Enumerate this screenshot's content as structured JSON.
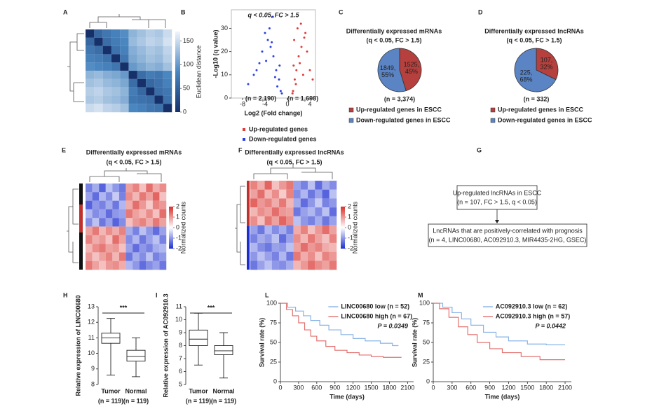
{
  "chart_data": [
    {
      "type": "heatmap",
      "panel": "A",
      "colorbar_label": "Euclidean distance",
      "zlim": [
        0,
        170
      ],
      "zticks": [
        0,
        50,
        100,
        150
      ],
      "colors": [
        "#16306a",
        "#4a86c0",
        "#f0f5fb"
      ],
      "values": [
        [
          0,
          55,
          70,
          80,
          90,
          120,
          130,
          140,
          135,
          150
        ],
        [
          55,
          0,
          60,
          75,
          85,
          125,
          135,
          145,
          140,
          155
        ],
        [
          70,
          60,
          0,
          65,
          80,
          115,
          125,
          135,
          130,
          145
        ],
        [
          80,
          75,
          65,
          0,
          70,
          110,
          120,
          130,
          125,
          140
        ],
        [
          90,
          85,
          80,
          70,
          0,
          100,
          110,
          120,
          115,
          130
        ],
        [
          120,
          125,
          115,
          110,
          100,
          0,
          60,
          75,
          70,
          85
        ],
        [
          130,
          135,
          125,
          120,
          110,
          60,
          0,
          55,
          65,
          80
        ],
        [
          140,
          145,
          135,
          130,
          120,
          75,
          55,
          0,
          60,
          70
        ],
        [
          135,
          140,
          130,
          125,
          115,
          70,
          65,
          60,
          0,
          65
        ],
        [
          150,
          155,
          145,
          140,
          130,
          85,
          80,
          70,
          65,
          0
        ]
      ]
    },
    {
      "type": "scatter",
      "panel": "B",
      "annotation": "q < 0.05, FC > 1.5",
      "xlabel": "Log2 (Fold change)",
      "ylabel": "-Log10 (q value)",
      "xlim": [
        -10,
        5
      ],
      "ylim": [
        0,
        38
      ],
      "xticks": [
        -8,
        -4,
        0,
        4
      ],
      "yticks": [
        0,
        10,
        20,
        30
      ],
      "count_labels": [
        "(n = 2,190)",
        "(n = 1,698)"
      ],
      "series": [
        {
          "name": "Up-regulated genes",
          "color": "#e03a3a",
          "x": [
            1.0,
            1.3,
            1.6,
            2.0,
            2.5,
            3.0,
            3.5,
            4.0,
            1.2,
            1.8,
            2.2,
            2.8,
            0.9,
            1.5,
            3.2,
            2.4,
            1.1,
            4.5
          ],
          "values": [
            3,
            8,
            12,
            18,
            22,
            26,
            20,
            12,
            25,
            30,
            15,
            10,
            2,
            6,
            28,
            32,
            14,
            8
          ]
        },
        {
          "name": "Down-regulated genes",
          "color": "#2a3fe0",
          "x": [
            -1.2,
            -1.5,
            -2,
            -2.5,
            -3,
            -3.5,
            -4,
            -4.5,
            -5,
            -6,
            -7,
            -1.8,
            -2.2,
            -2.8,
            -3.2,
            -3.8,
            -1.0,
            -1.4,
            -2.6,
            -5.5
          ],
          "values": [
            3,
            8,
            12,
            18,
            22,
            25,
            28,
            20,
            15,
            10,
            6,
            5,
            9,
            24,
            30,
            16,
            2,
            14,
            35,
            12
          ]
        }
      ]
    },
    {
      "type": "pie",
      "panel": "C",
      "title": "Differentially expressed mRNAs",
      "subtitle": "(q < 0.05, FC > 1.5)",
      "categories": [
        "Up-regulated genes in ESCC",
        "Down-regulated genes in ESCC"
      ],
      "values": [
        1525,
        1849
      ],
      "value_labels": [
        [
          "1525,",
          "45%"
        ],
        [
          "1849,",
          "55%"
        ]
      ],
      "colors": [
        "#b5403d",
        "#5b84c4"
      ],
      "total_label": "(n = 3,374)"
    },
    {
      "type": "pie",
      "panel": "D",
      "title": "Differentially expressed lncRNAs",
      "subtitle": "(q < 0.05, FC > 1.5)",
      "categories": [
        "Up-regulated genes in ESCC",
        "Down-regulated genes in ESCC"
      ],
      "values": [
        107,
        225
      ],
      "value_labels": [
        [
          "107,",
          "32%"
        ],
        [
          "225,",
          "68%"
        ]
      ],
      "colors": [
        "#b5403d",
        "#5b84c4"
      ],
      "total_label": "(n = 332)"
    },
    {
      "type": "heatmap",
      "panel": "E",
      "title": "Differentially expressed mRNAs",
      "subtitle": "(q < 0.05, FC > 1.5)",
      "colorbar_label": "Normalized counts",
      "zlim": [
        -2,
        2
      ],
      "zticks": [
        -2,
        -1,
        0,
        1,
        2
      ],
      "colors": [
        "#1d2fd0",
        "#ffffff",
        "#d9302c"
      ],
      "values": [
        [
          -1.2,
          -0.8,
          -1.5,
          -0.6,
          -1.0,
          -1.3,
          0.9,
          1.2,
          0.6,
          1.4,
          0.8,
          1.1
        ],
        [
          -0.9,
          -1.4,
          -0.7,
          -1.1,
          -0.5,
          -1.2,
          1.1,
          0.7,
          1.3,
          0.9,
          1.5,
          0.6
        ],
        [
          -1.5,
          -1.0,
          -1.2,
          -0.8,
          -1.3,
          -0.7,
          0.8,
          1.4,
          1.0,
          0.5,
          1.2,
          1.0
        ],
        [
          -0.7,
          -1.1,
          -0.9,
          -1.4,
          -1.0,
          -0.9,
          1.3,
          0.9,
          0.7,
          1.1,
          0.6,
          1.4
        ],
        [
          -1.1,
          -0.6,
          -1.3,
          -0.9,
          -1.5,
          -1.1,
          0.6,
          1.0,
          1.2,
          0.8,
          1.3,
          0.9
        ],
        [
          0.9,
          1.3,
          0.7,
          1.1,
          0.8,
          1.2,
          -0.8,
          -1.2,
          -0.6,
          -1.0,
          -1.4,
          -0.9
        ],
        [
          1.2,
          0.8,
          1.0,
          0.6,
          1.4,
          0.9,
          -1.1,
          -0.7,
          -1.3,
          -0.9,
          -0.6,
          -1.2
        ],
        [
          0.7,
          1.1,
          1.3,
          0.9,
          1.0,
          0.6,
          -0.9,
          -1.4,
          -1.0,
          -1.2,
          -0.8,
          -0.7
        ],
        [
          1.0,
          0.6,
          0.9,
          1.2,
          0.7,
          1.3,
          -1.3,
          -0.8,
          -1.1,
          -0.6,
          -1.2,
          -1.0
        ],
        [
          1.3,
          0.9,
          0.6,
          1.0,
          1.1,
          0.8,
          -0.7,
          -1.0,
          -1.4,
          -1.1,
          -0.9,
          -1.3
        ]
      ]
    },
    {
      "type": "heatmap",
      "panel": "F",
      "title": "Differentially expressed lncRNAs",
      "subtitle": "(q < 0.05, FC > 1.5)",
      "colorbar_label": "Normalized counts",
      "zlim": [
        -2,
        2
      ],
      "zticks": [
        -2,
        -1,
        0,
        1,
        2
      ],
      "colors": [
        "#1d2fd0",
        "#ffffff",
        "#d9302c"
      ],
      "values": [
        [
          1.2,
          0.8,
          1.5,
          0.6,
          1.0,
          1.3,
          -0.9,
          -1.2,
          -0.6,
          -1.4,
          -0.8,
          -1.1
        ],
        [
          0.9,
          1.4,
          0.7,
          1.1,
          0.5,
          1.2,
          -1.1,
          -0.7,
          -1.3,
          -0.9,
          -1.5,
          -0.6
        ],
        [
          1.5,
          1.0,
          1.2,
          0.8,
          1.3,
          0.7,
          -0.8,
          -1.4,
          -1.0,
          -0.5,
          -1.2,
          -1.0
        ],
        [
          0.7,
          1.1,
          0.9,
          1.4,
          1.0,
          0.9,
          -1.3,
          -0.9,
          -0.7,
          -1.1,
          -0.6,
          -1.4
        ],
        [
          1.1,
          0.6,
          1.3,
          0.9,
          1.5,
          1.1,
          -0.6,
          -1.0,
          -1.2,
          -0.8,
          -1.3,
          -0.9
        ],
        [
          -0.9,
          -1.3,
          -0.7,
          -1.1,
          -0.8,
          -1.2,
          0.8,
          1.2,
          0.6,
          1.0,
          1.4,
          0.9
        ],
        [
          -1.2,
          -0.8,
          -1.0,
          -0.6,
          -1.4,
          -0.9,
          1.1,
          0.7,
          1.3,
          0.9,
          0.6,
          1.2
        ],
        [
          -0.7,
          -1.1,
          -1.3,
          -0.9,
          -1.0,
          -0.6,
          0.9,
          1.4,
          1.0,
          1.2,
          0.8,
          0.7
        ],
        [
          -1.0,
          -0.6,
          -0.9,
          -1.2,
          -0.7,
          -1.3,
          1.3,
          0.8,
          1.1,
          0.6,
          1.2,
          1.0
        ],
        [
          -1.3,
          -0.9,
          -0.6,
          -1.0,
          -1.1,
          -0.8,
          0.7,
          1.0,
          1.4,
          1.1,
          0.9,
          1.3
        ]
      ]
    },
    {
      "type": "box",
      "panel": "H",
      "ylabel": "Relative expression of LINC00680",
      "ylim": [
        8,
        13
      ],
      "yticks": [
        8,
        9,
        10,
        11,
        12,
        13
      ],
      "categories": [
        "Tumor",
        "Normal"
      ],
      "n_labels": [
        "(n = 119)",
        "(n = 119)"
      ],
      "annotation": "***",
      "boxes": [
        {
          "min": 8.6,
          "q1": 10.65,
          "median": 11.0,
          "q3": 11.3,
          "max": 12.25
        },
        {
          "min": 8.5,
          "q1": 9.5,
          "median": 9.8,
          "q3": 10.2,
          "max": 11.0
        }
      ]
    },
    {
      "type": "box",
      "panel": "I",
      "ylabel": "Relative expression of AC092910.3",
      "ylim": [
        5,
        11
      ],
      "yticks": [
        5,
        6,
        7,
        8,
        9,
        10,
        11
      ],
      "categories": [
        "Tumor",
        "Normal"
      ],
      "n_labels": [
        "(n = 119)",
        "(n = 119)"
      ],
      "annotation": "***",
      "boxes": [
        {
          "min": 6.5,
          "q1": 8.0,
          "median": 8.5,
          "q3": 9.2,
          "max": 10.5
        },
        {
          "min": 5.5,
          "q1": 7.3,
          "median": 7.6,
          "q3": 8.0,
          "max": 9.0
        }
      ]
    },
    {
      "type": "line",
      "panel": "L",
      "xlabel": "Time (days)",
      "ylabel": "Survival rate (%)",
      "p_label": "P = 0.0349",
      "xlim": [
        0,
        2200
      ],
      "ylim": [
        0,
        100
      ],
      "xticks": [
        0,
        300,
        600,
        900,
        1200,
        1500,
        1800,
        2100
      ],
      "yticks": [
        0,
        25,
        50,
        75,
        100
      ],
      "series": [
        {
          "name": "LINC00680 low (n = 52)",
          "color": "#8ab4e6",
          "x": [
            0,
            120,
            120,
            250,
            250,
            380,
            380,
            500,
            500,
            650,
            650,
            800,
            800,
            1000,
            1000,
            1200,
            1200,
            1400,
            1400,
            1650,
            1650,
            1850,
            1850,
            1950
          ],
          "values": [
            100,
            100,
            95,
            95,
            90,
            90,
            84,
            84,
            78,
            78,
            72,
            72,
            66,
            66,
            60,
            60,
            55,
            55,
            52,
            52,
            49,
            49,
            46,
            46
          ]
        },
        {
          "name": "LINC00680 high (n = 67)",
          "color": "#e2716e",
          "x": [
            0,
            100,
            100,
            200,
            200,
            300,
            300,
            400,
            400,
            500,
            500,
            600,
            600,
            750,
            750,
            900,
            900,
            1100,
            1100,
            1300,
            1300,
            1500,
            1500,
            1700,
            1700,
            2000
          ],
          "values": [
            100,
            100,
            92,
            92,
            84,
            84,
            75,
            75,
            66,
            66,
            58,
            58,
            52,
            52,
            45,
            45,
            40,
            40,
            37,
            37,
            34,
            34,
            32,
            32,
            31,
            31
          ]
        }
      ]
    },
    {
      "type": "line",
      "panel": "M",
      "xlabel": "Time (days)",
      "ylabel": "Survival rate (%)",
      "p_label": "P = 0.0442",
      "xlim": [
        0,
        2200
      ],
      "ylim": [
        0,
        100
      ],
      "xticks": [
        0,
        300,
        600,
        900,
        1200,
        1500,
        1800,
        2100
      ],
      "yticks": [
        0,
        25,
        50,
        75,
        100
      ],
      "series": [
        {
          "name": "AC092910.3 low (n = 62)",
          "color": "#8ab4e6",
          "x": [
            0,
            150,
            150,
            300,
            300,
            450,
            450,
            600,
            600,
            800,
            800,
            1000,
            1000,
            1200,
            1200,
            1500,
            1500,
            1800,
            1800,
            2100
          ],
          "values": [
            100,
            100,
            95,
            95,
            88,
            88,
            80,
            80,
            72,
            72,
            63,
            63,
            57,
            57,
            52,
            52,
            48,
            48,
            47,
            47
          ]
        },
        {
          "name": "AC092910.3 high (n = 57)",
          "color": "#e2716e",
          "x": [
            0,
            100,
            100,
            250,
            250,
            400,
            400,
            550,
            550,
            700,
            700,
            900,
            900,
            1100,
            1100,
            1400,
            1400,
            1700,
            1700,
            2100
          ],
          "values": [
            100,
            100,
            93,
            93,
            82,
            82,
            70,
            70,
            60,
            60,
            50,
            50,
            42,
            42,
            37,
            37,
            32,
            32,
            28,
            28
          ]
        }
      ]
    }
  ],
  "flowchart": {
    "panel": "G",
    "boxes": [
      [
        "Up-regulated lncRNAs in ESCC",
        "(n = 107, FC > 1.5, q < 0.05)"
      ],
      [
        "LncRNAs that are positively-correlated with prognosis",
        "(n = 4, LINC00680, AC092910.3, MIR4435-2HG, GSEC)"
      ]
    ]
  }
}
